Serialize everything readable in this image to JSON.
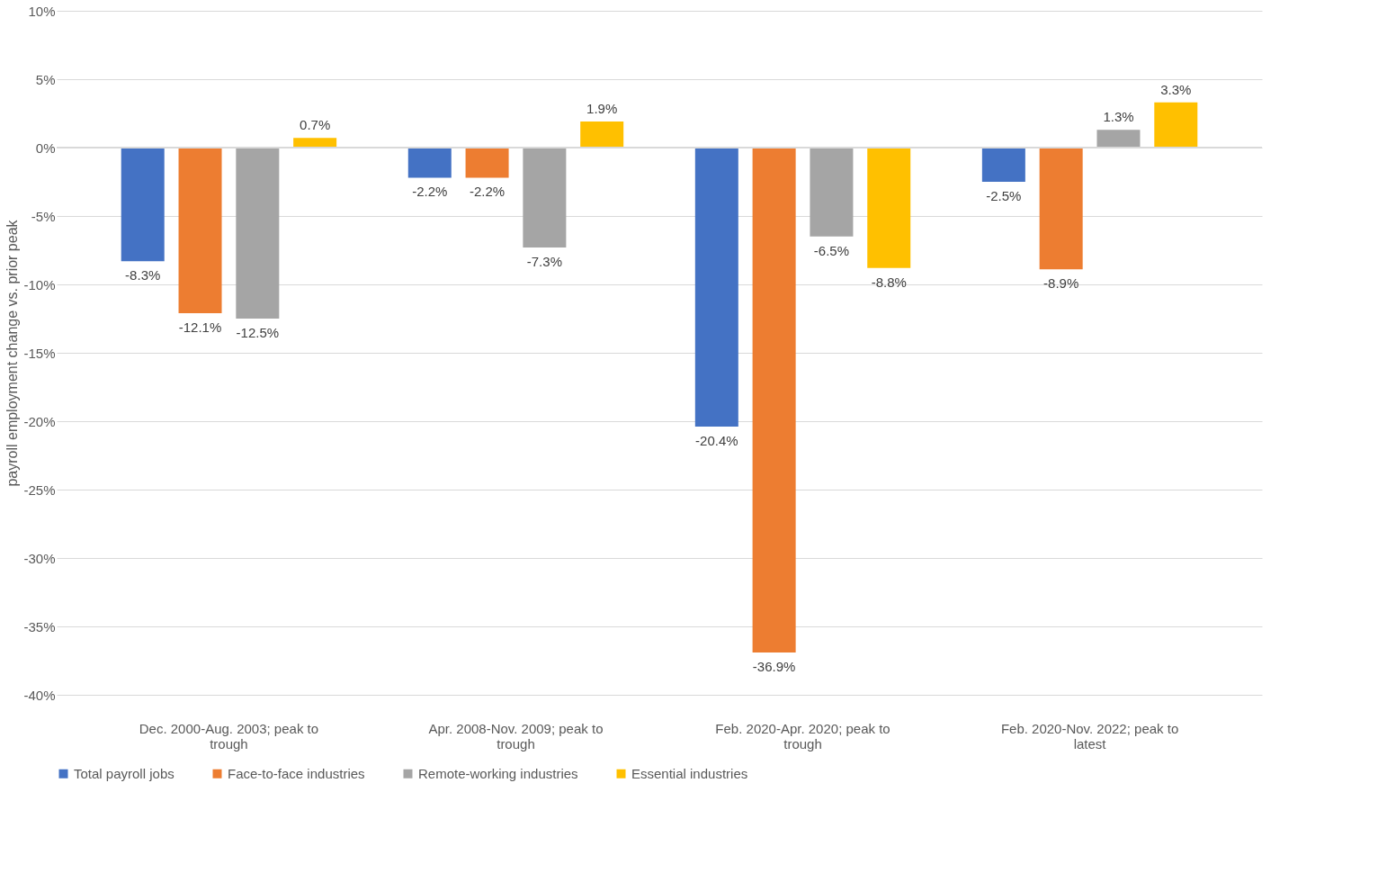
{
  "chart_data": {
    "type": "bar",
    "ylabel": "payroll employment change vs. prior peak",
    "categories": [
      "Dec. 2000-Aug. 2003; peak to trough",
      "Apr. 2008-Nov. 2009; peak to trough",
      "Feb. 2020-Apr. 2020; peak to trough",
      "Feb. 2020-Nov. 2022; peak to latest"
    ],
    "series": [
      {
        "name": "Total payroll jobs",
        "color": "#4472c4",
        "values": [
          -8.3,
          -2.2,
          -20.4,
          -2.5
        ],
        "value_labels": [
          "-8.3%",
          "-2.2%",
          "-20.4%",
          "-2.5%"
        ]
      },
      {
        "name": "Face-to-face industries",
        "color": "#ed7d31",
        "values": [
          -12.1,
          -2.2,
          -36.9,
          -8.9
        ],
        "value_labels": [
          "-12.1%",
          "-2.2%",
          "-36.9%",
          "-8.9%"
        ]
      },
      {
        "name": "Remote-working industries",
        "color": "#a5a5a5",
        "values": [
          -12.5,
          -7.3,
          -6.5,
          1.3
        ],
        "value_labels": [
          "-12.5%",
          "-7.3%",
          "-6.5%",
          "1.3%"
        ]
      },
      {
        "name": "Essential industries",
        "color": "#ffc000",
        "values": [
          0.7,
          1.9,
          -8.8,
          3.3
        ],
        "value_labels": [
          "0.7%",
          "1.9%",
          "-8.8%",
          "3.3%"
        ]
      }
    ],
    "ylim": [
      -40,
      10
    ],
    "yticks": [
      {
        "value": -40,
        "label": "-40%"
      },
      {
        "value": -35,
        "label": "-35%"
      },
      {
        "value": -30,
        "label": "-30%"
      },
      {
        "value": -25,
        "label": "-25%"
      },
      {
        "value": -20,
        "label": "-20%"
      },
      {
        "value": -15,
        "label": "-15%"
      },
      {
        "value": -10,
        "label": "-10%"
      },
      {
        "value": -5,
        "label": "-5%"
      },
      {
        "value": 0,
        "label": "0%"
      },
      {
        "value": 5,
        "label": "5%"
      },
      {
        "value": 10,
        "label": "10%"
      }
    ],
    "grid": "y",
    "legend": "bottom"
  }
}
